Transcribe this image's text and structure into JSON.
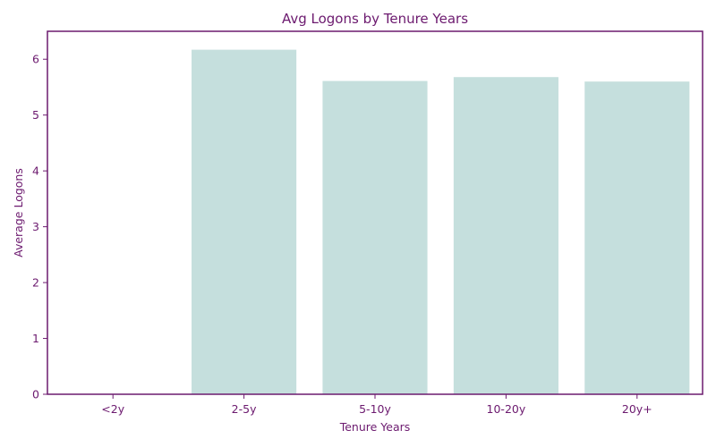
{
  "colors": {
    "accent": "#6c1a6f",
    "bar": "#c5dfdd",
    "background": "#ffffff"
  },
  "chart_data": {
    "type": "bar",
    "title": "Avg Logons by Tenure Years",
    "xlabel": "Tenure Years",
    "ylabel": "Average Logons",
    "categories": [
      "<2y",
      "2-5y",
      "5-10y",
      "10-20y",
      "20y+"
    ],
    "values": [
      0,
      6.17,
      5.61,
      5.68,
      5.6
    ],
    "ylim": [
      0,
      6.5
    ],
    "yticks": [
      0,
      1,
      2,
      3,
      4,
      5,
      6
    ],
    "grid": false,
    "legend": "none"
  }
}
